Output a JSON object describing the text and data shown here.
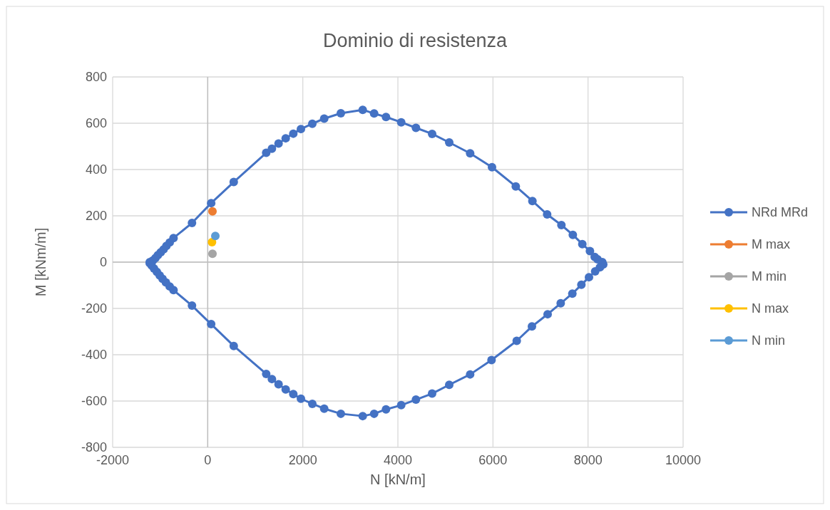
{
  "chart_data": {
    "type": "scatter",
    "title": "Dominio di resistenza",
    "xlabel": "N [kN/m]",
    "ylabel": "M [kNm/m]",
    "xlim": [
      -2000,
      10000
    ],
    "xticks": [
      -2000,
      0,
      2000,
      4000,
      6000,
      8000,
      10000
    ],
    "ylim": [
      -800,
      800
    ],
    "yticks": [
      -800,
      -600,
      -400,
      -200,
      0,
      200,
      400,
      600,
      800
    ],
    "grid": true,
    "legend": "right",
    "marker": "circle",
    "series": [
      {
        "name": "NRd MRd",
        "type": "line",
        "color": "#4472c4",
        "x": [
          -1220,
          -1150,
          -1100,
          -1050,
          -990,
          -930,
          -870,
          -800,
          -720,
          -331,
          72,
          547,
          1230,
          1350,
          1490,
          1640,
          1800,
          1960,
          2200,
          2450,
          2800,
          3260,
          3500,
          3750,
          4070,
          4380,
          4720,
          5080,
          5520,
          5980,
          6480,
          6830,
          7140,
          7440,
          7680,
          7880,
          8040,
          8140,
          8200,
          8300,
          8320,
          8250,
          8150,
          8020,
          7860,
          7670,
          7425,
          7150,
          6820,
          6500,
          5970,
          5520,
          5080,
          4720,
          4380,
          4070,
          3750,
          3500,
          3260,
          2800,
          2450,
          2200,
          1960,
          1800,
          1640,
          1490,
          1350,
          1230,
          547,
          72,
          -331,
          -720,
          -800,
          -880,
          -950,
          -1010,
          -1070,
          -1130,
          -1180,
          -1220
        ],
        "values": [
          0,
          8,
          18,
          30,
          42,
          55,
          70,
          85,
          104,
          169,
          255,
          346,
          472,
          490,
          512,
          535,
          555,
          575,
          598,
          620,
          643,
          658,
          642,
          627,
          604,
          580,
          554,
          517,
          470,
          410,
          327,
          264,
          206,
          160,
          118,
          78,
          48,
          22,
          12,
          0,
          -10,
          -22,
          -40,
          -65,
          -98,
          -136,
          -178,
          -225,
          -278,
          -340,
          -423,
          -485,
          -530,
          -568,
          -594,
          -618,
          -636,
          -655,
          -665,
          -655,
          -633,
          -612,
          -590,
          -570,
          -550,
          -528,
          -505,
          -483,
          -362,
          -268,
          -188,
          -121,
          -105,
          -88,
          -72,
          -58,
          -42,
          -28,
          -15,
          -5
        ]
      },
      {
        "name": "M max",
        "color": "#ed7d31",
        "x": [
          100
        ],
        "values": [
          219
        ]
      },
      {
        "name": "M min",
        "color": "#a5a5a5",
        "x": [
          100
        ],
        "values": [
          36
        ]
      },
      {
        "name": "N max",
        "color": "#ffc000",
        "x": [
          90
        ],
        "values": [
          86
        ]
      },
      {
        "name": "N min",
        "color": "#5b9bd5",
        "x": [
          160
        ],
        "values": [
          113
        ]
      }
    ]
  }
}
